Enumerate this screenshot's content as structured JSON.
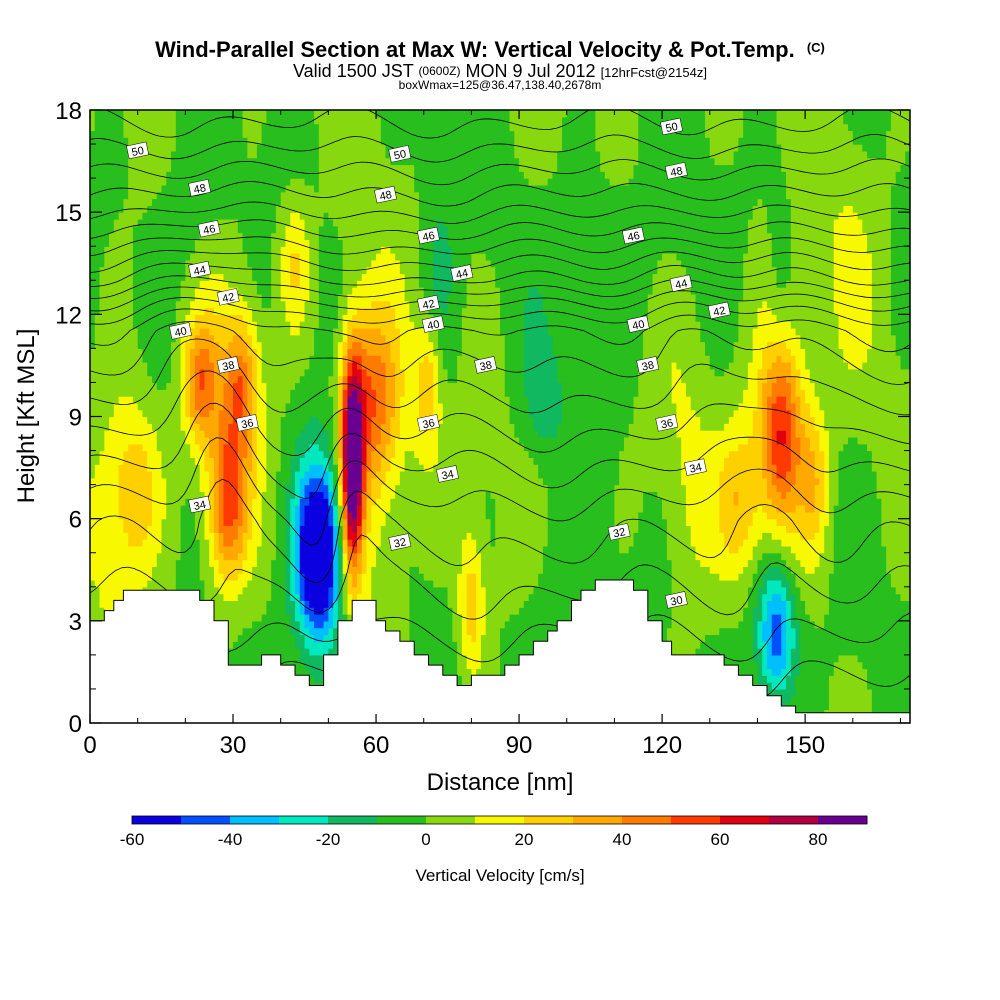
{
  "chart_data": {
    "type": "heatmap",
    "title": "Wind-Parallel Section at Max W: Vertical Velocity & Pot.Temp.",
    "title_mark": "(C)",
    "subtitle": {
      "valid_prefix": "Valid 1500 JST",
      "zulu": "(0600Z)",
      "date": "MON 9 Jul 2012",
      "forecast": "[12hrFcst@2154z]"
    },
    "info_line": "boxWmax=125@36.47,138.40,2678m",
    "xlabel": "Distance [nm]",
    "ylabel": "Height [Kft MSL]",
    "xlim": [
      0,
      172
    ],
    "ylim": [
      0,
      18
    ],
    "x_ticks": [
      0,
      30,
      60,
      90,
      120,
      150
    ],
    "y_ticks": [
      0,
      3,
      6,
      9,
      12,
      15,
      18
    ],
    "colorbar": {
      "label": "Vertical Velocity [cm/s]",
      "min": -60,
      "max": 90,
      "step": 10,
      "tick_labels": [
        -60,
        -40,
        -20,
        0,
        20,
        40,
        60,
        80
      ],
      "colors": [
        "#0a00e0",
        "#0050ff",
        "#00bfff",
        "#00e8c0",
        "#10b860",
        "#28be1e",
        "#88d810",
        "#f8f800",
        "#ffd000",
        "#ffa800",
        "#ff7a00",
        "#ff3a00",
        "#e00010",
        "#b00040",
        "#6a0090"
      ]
    },
    "background_w": 0,
    "w_features": [
      {
        "x": 10,
        "y": 7.0,
        "sx": 4,
        "sy": 1.8,
        "w": 22
      },
      {
        "x": 5,
        "y": 6.5,
        "sx": 5,
        "sy": 3.0,
        "w": 12
      },
      {
        "x": 23,
        "y": 10.0,
        "sx": 2.5,
        "sy": 1.2,
        "w": 38
      },
      {
        "x": 29,
        "y": 6.5,
        "sx": 2.8,
        "sy": 1.6,
        "w": 44
      },
      {
        "x": 32,
        "y": 10.0,
        "sx": 2.5,
        "sy": 1.4,
        "w": 36
      },
      {
        "x": 28,
        "y": 8.5,
        "sx": 4.5,
        "sy": 3.5,
        "w": 16
      },
      {
        "x": 43,
        "y": 13.5,
        "sx": 2.5,
        "sy": 1.5,
        "w": 22
      },
      {
        "x": 48,
        "y": 5.0,
        "sx": 3.3,
        "sy": 1.7,
        "w": -70
      },
      {
        "x": 48,
        "y": 5.0,
        "sx": 5,
        "sy": 3,
        "w": -18
      },
      {
        "x": 55,
        "y": 7.5,
        "sx": 1.6,
        "sy": 2.2,
        "w": 95
      },
      {
        "x": 59,
        "y": 9.5,
        "sx": 4,
        "sy": 1.8,
        "w": 38
      },
      {
        "x": 59,
        "y": 7.5,
        "sx": 6,
        "sy": 3.5,
        "w": 18
      },
      {
        "x": 71,
        "y": 10.0,
        "sx": 2,
        "sy": 1.5,
        "w": 28
      },
      {
        "x": 73,
        "y": 13.0,
        "sx": 3,
        "sy": 2.5,
        "w": -14
      },
      {
        "x": 80,
        "y": 3.5,
        "sx": 2,
        "sy": 1.5,
        "w": 28
      },
      {
        "x": 95,
        "y": 9.5,
        "sx": 3,
        "sy": 1.2,
        "w": -14
      },
      {
        "x": 98,
        "y": 3.0,
        "sx": 6,
        "sy": 2,
        "w": -10
      },
      {
        "x": 125,
        "y": 6.5,
        "sx": 4,
        "sy": 3,
        "w": 10
      },
      {
        "x": 136,
        "y": 6.5,
        "sx": 3,
        "sy": 1.5,
        "w": 22
      },
      {
        "x": 145,
        "y": 8.5,
        "sx": 3.0,
        "sy": 1.8,
        "w": 48
      },
      {
        "x": 145,
        "y": 8.0,
        "sx": 6,
        "sy": 4,
        "w": 18
      },
      {
        "x": 152,
        "y": 7.0,
        "sx": 2.2,
        "sy": 1.5,
        "w": 22
      },
      {
        "x": 144,
        "y": 2.7,
        "sx": 2.8,
        "sy": 1.4,
        "w": -45
      },
      {
        "x": 143,
        "y": 2.5,
        "sx": 6,
        "sy": 2.5,
        "w": -12
      },
      {
        "x": 145,
        "y": 13.5,
        "sx": 2,
        "sy": 2,
        "w": -12
      },
      {
        "x": 160,
        "y": 14.0,
        "sx": 4,
        "sy": 3,
        "w": 8
      },
      {
        "x": 110,
        "y": 14.0,
        "sx": 10,
        "sy": 2,
        "w": -8
      },
      {
        "x": 20,
        "y": 15.0,
        "sx": 6,
        "sy": 2,
        "w": -9
      }
    ],
    "terrain": {
      "x": [
        0,
        3,
        3,
        5,
        5,
        7,
        7,
        10,
        10,
        23,
        23,
        26,
        26,
        29,
        29,
        36,
        36,
        40,
        40,
        43,
        43,
        46,
        46,
        49,
        49,
        52,
        52,
        55,
        55,
        60,
        60,
        62,
        62,
        65,
        65,
        68,
        68,
        71,
        71,
        74,
        74,
        77,
        77,
        80,
        80,
        87,
        87,
        90,
        90,
        93,
        93,
        96,
        96,
        98,
        98,
        101,
        101,
        103,
        103,
        106,
        106,
        114,
        114,
        117,
        117,
        120,
        120,
        122,
        122,
        133,
        133,
        136,
        136,
        139,
        139,
        142,
        142,
        145,
        145,
        148,
        148,
        152,
        152,
        172
      ],
      "y": [
        3.0,
        3.0,
        3.3,
        3.3,
        3.6,
        3.6,
        3.9,
        3.9,
        3.9,
        3.9,
        3.6,
        3.6,
        3.0,
        3.0,
        1.7,
        1.7,
        2.0,
        2.0,
        1.7,
        1.7,
        1.4,
        1.4,
        1.1,
        1.1,
        2.0,
        2.0,
        3.0,
        3.0,
        3.6,
        3.6,
        3.0,
        3.0,
        2.7,
        2.7,
        2.4,
        2.4,
        2.0,
        2.0,
        1.7,
        1.7,
        1.4,
        1.4,
        1.1,
        1.1,
        1.4,
        1.4,
        1.7,
        1.7,
        2.0,
        2.0,
        2.4,
        2.4,
        2.7,
        2.7,
        3.0,
        3.0,
        3.6,
        3.6,
        3.9,
        3.9,
        4.2,
        4.2,
        3.9,
        3.9,
        3.0,
        3.0,
        2.4,
        2.4,
        2.0,
        2.0,
        1.7,
        1.7,
        1.4,
        1.4,
        1.1,
        1.1,
        0.8,
        0.8,
        0.5,
        0.5,
        0.3,
        0.3,
        0.3,
        0.3
      ]
    },
    "theta_levels": [
      29,
      30,
      31,
      32,
      33,
      34,
      35,
      36,
      37,
      38,
      39,
      40,
      41,
      42,
      43,
      44,
      45,
      46,
      47,
      48,
      49,
      50,
      51
    ],
    "theta_profile": {
      "heights": [
        0,
        2.5,
        4.5,
        6.0,
        7.5,
        8.5,
        9.5,
        10.5,
        11.5,
        12.3,
        13.0,
        13.7,
        14.4,
        15.2,
        16.2,
        17.2,
        18.5
      ],
      "theta": [
        28,
        30,
        31.5,
        32.5,
        34,
        35,
        36,
        37,
        38,
        40,
        42,
        43.5,
        45,
        46.5,
        48,
        49.5,
        51
      ]
    },
    "theta_perturbations": [
      {
        "x": 28,
        "y": 8.0,
        "sx": 5,
        "sy": 3,
        "d": -1.4
      },
      {
        "x": 55,
        "y": 7.0,
        "sx": 4,
        "sy": 3,
        "d": -1.0
      },
      {
        "x": 145,
        "y": 8.0,
        "sx": 6,
        "sy": 3,
        "d": -1.0
      },
      {
        "x": 48,
        "y": 5.0,
        "sx": 4,
        "sy": 2,
        "d": 0.8
      },
      {
        "x": 20,
        "y": 12.5,
        "sx": 8,
        "sy": 2,
        "d": -1.2
      },
      {
        "x": 125,
        "y": 12.5,
        "sx": 8,
        "sy": 2,
        "d": -1.0
      }
    ],
    "contour_labels": [
      {
        "x": 10,
        "y": 16.8,
        "text": "50"
      },
      {
        "x": 65,
        "y": 16.7,
        "text": "50"
      },
      {
        "x": 122,
        "y": 17.5,
        "text": "50"
      },
      {
        "x": 23,
        "y": 15.7,
        "text": "48"
      },
      {
        "x": 62,
        "y": 15.5,
        "text": "48"
      },
      {
        "x": 123,
        "y": 16.2,
        "text": "48"
      },
      {
        "x": 25,
        "y": 14.5,
        "text": "46"
      },
      {
        "x": 71,
        "y": 14.3,
        "text": "46"
      },
      {
        "x": 114,
        "y": 14.3,
        "text": "46"
      },
      {
        "x": 23,
        "y": 13.3,
        "text": "44"
      },
      {
        "x": 78,
        "y": 13.2,
        "text": "44"
      },
      {
        "x": 124,
        "y": 12.9,
        "text": "44"
      },
      {
        "x": 29,
        "y": 12.5,
        "text": "42"
      },
      {
        "x": 71,
        "y": 12.3,
        "text": "42"
      },
      {
        "x": 132,
        "y": 12.1,
        "text": "42"
      },
      {
        "x": 19,
        "y": 11.5,
        "text": "40"
      },
      {
        "x": 72,
        "y": 11.7,
        "text": "40"
      },
      {
        "x": 115,
        "y": 11.7,
        "text": "40"
      },
      {
        "x": 29,
        "y": 10.5,
        "text": "38"
      },
      {
        "x": 83,
        "y": 10.5,
        "text": "38"
      },
      {
        "x": 117,
        "y": 10.5,
        "text": "38"
      },
      {
        "x": 33,
        "y": 8.8,
        "text": "36"
      },
      {
        "x": 71,
        "y": 8.8,
        "text": "36"
      },
      {
        "x": 121,
        "y": 8.8,
        "text": "36"
      },
      {
        "x": 23,
        "y": 6.4,
        "text": "34"
      },
      {
        "x": 75,
        "y": 7.3,
        "text": "34"
      },
      {
        "x": 127,
        "y": 7.5,
        "text": "34"
      },
      {
        "x": 65,
        "y": 5.3,
        "text": "32"
      },
      {
        "x": 111,
        "y": 5.6,
        "text": "32"
      },
      {
        "x": 123,
        "y": 3.6,
        "text": "30"
      }
    ]
  }
}
